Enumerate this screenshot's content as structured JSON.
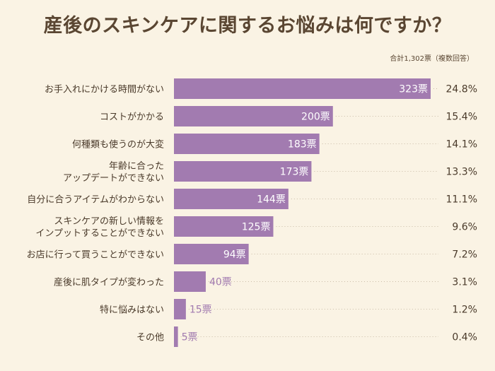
{
  "title": "産後のスキンケアに関するお悩みは何ですか？",
  "note": "合計1,302票（複数回答）",
  "colors": {
    "bar": "#a27bb0",
    "background": "#faf3e4",
    "text": "#4a3a2a",
    "dots": "#c9bba7"
  },
  "chart_data": {
    "type": "bar",
    "orientation": "horizontal",
    "title": "産後のスキンケアに関するお悩みは何ですか？",
    "total_votes": 1302,
    "unit": "票",
    "categories": [
      [
        "お手入れにかける時間がない"
      ],
      [
        "コストがかかる"
      ],
      [
        "何種類も使うのが大変"
      ],
      [
        "年齢に合った",
        "アップデートができない"
      ],
      [
        "自分に合うアイテムがわからない"
      ],
      [
        "スキンケアの新しい情報を",
        "インプットすることができない"
      ],
      [
        "お店に行って買うことができない"
      ],
      [
        "産後に肌タイプが変わった"
      ],
      [
        "特に悩みはない"
      ],
      [
        "その他"
      ]
    ],
    "values": [
      323,
      200,
      183,
      173,
      144,
      125,
      94,
      40,
      15,
      5
    ],
    "value_labels": [
      "323票",
      "200票",
      "183票",
      "173票",
      "144票",
      "125票",
      "94票",
      "40票",
      "15票",
      "5票"
    ],
    "percentages": [
      "24.8%",
      "15.4%",
      "14.1%",
      "13.3%",
      "11.1%",
      "9.6%",
      "7.2%",
      "3.1%",
      "1.2%",
      "0.4%"
    ],
    "xlim": [
      0,
      323
    ]
  }
}
